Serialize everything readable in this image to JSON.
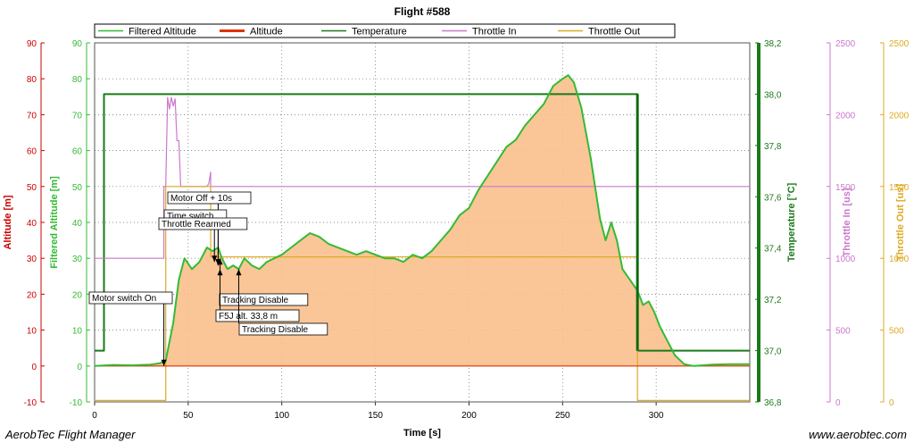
{
  "chart_data": {
    "type": "line",
    "title": "Flight #588",
    "xlabel": "Time [s]",
    "xlim": [
      0,
      350
    ],
    "x_ticks": [
      "0",
      "50",
      "100",
      "150",
      "200",
      "250",
      "300"
    ],
    "axes": [
      {
        "label": "Altitude [m]",
        "color": "#cc0000",
        "ylim": [
          -10,
          90
        ],
        "ticks": [
          "-10",
          "0",
          "10",
          "20",
          "30",
          "40",
          "50",
          "60",
          "70",
          "80",
          "90"
        ]
      },
      {
        "label": "Filtered Altitude [m]",
        "color": "#33bb33",
        "ylim": [
          -10,
          90
        ],
        "ticks": [
          "-10",
          "0",
          "10",
          "20",
          "30",
          "40",
          "50",
          "60",
          "70",
          "80",
          "90"
        ]
      },
      {
        "label": "Temperature [°C]",
        "color": "#1a7a1a",
        "ylim": [
          36.8,
          38.2
        ],
        "ticks": [
          "36,8",
          "37,0",
          "37,2",
          "37,4",
          "37,6",
          "37,8",
          "38,0",
          "38,2"
        ]
      },
      {
        "label": "Throttle In [us]",
        "color": "#cc77cc",
        "ylim": [
          0,
          2500
        ],
        "ticks": [
          "0",
          "500",
          "1000",
          "1500",
          "2000",
          "2500"
        ]
      },
      {
        "label": "Throttle Out [us]",
        "color": "#ddaa22",
        "ylim": [
          0,
          2500
        ],
        "ticks": [
          "0",
          "500",
          "1000",
          "1500",
          "2000",
          "2500"
        ]
      }
    ],
    "legend": [
      "Filtered Altitude",
      "Altitude",
      "Temperature",
      "Throttle In",
      "Throttle Out"
    ],
    "grid": true,
    "series": [
      {
        "name": "Filtered Altitude",
        "color": "#33bb33",
        "axis": 1,
        "x": [
          0,
          10,
          20,
          30,
          35,
          38,
          42,
          45,
          48,
          52,
          56,
          60,
          63,
          66,
          68,
          71,
          74,
          77,
          80,
          84,
          88,
          92,
          96,
          100,
          105,
          110,
          115,
          120,
          125,
          130,
          135,
          140,
          145,
          150,
          155,
          160,
          165,
          170,
          175,
          180,
          185,
          190,
          195,
          200,
          205,
          210,
          215,
          220,
          225,
          230,
          235,
          240,
          245,
          250,
          253,
          256,
          260,
          265,
          270,
          273,
          276,
          279,
          282,
          286,
          290,
          293,
          296,
          299,
          302,
          306,
          310,
          315,
          320,
          330,
          340,
          350
        ],
        "y": [
          0,
          0.3,
          0.2,
          0.4,
          0.8,
          1.5,
          12,
          24,
          30,
          27,
          29,
          33,
          32,
          33,
          30,
          27,
          28,
          27,
          30,
          28,
          27,
          29,
          30,
          31,
          33,
          35,
          37,
          36,
          34,
          33,
          32,
          31,
          32,
          31,
          30,
          30,
          29,
          31,
          30,
          32,
          35,
          38,
          42,
          44,
          49,
          53,
          57,
          61,
          63,
          67,
          70,
          73,
          78,
          80,
          81,
          79,
          72,
          58,
          41,
          35,
          40,
          35,
          27,
          24,
          21,
          17,
          18,
          15,
          11,
          7,
          3,
          0.5,
          0,
          0.4,
          0.5,
          0.5
        ]
      },
      {
        "name": "Altitude",
        "color": "#dd3300",
        "axis": 0,
        "x": [
          0,
          350
        ],
        "y": [
          0,
          0
        ]
      },
      {
        "name": "Temperature",
        "color": "#1a7a1a",
        "axis": 2,
        "x": [
          0,
          5,
          5,
          290,
          290,
          350
        ],
        "y": [
          37.0,
          37.0,
          38.0,
          38.0,
          37.0,
          37.0
        ]
      },
      {
        "name": "Throttle In",
        "color": "#cc77cc",
        "axis": 3,
        "x": [
          0,
          37,
          37,
          38,
          39,
          40,
          41,
          42,
          43,
          44,
          45,
          46,
          46,
          60,
          61,
          62,
          62,
          350
        ],
        "y": [
          1000,
          1000,
          1500,
          1500,
          2120,
          2040,
          2120,
          2060,
          2110,
          1820,
          1820,
          1500,
          1500,
          1500,
          1520,
          1600,
          1500,
          1500
        ]
      },
      {
        "name": "Throttle Out",
        "color": "#ddaa22",
        "axis": 4,
        "x": [
          0,
          38,
          38,
          62,
          62,
          290,
          290,
          350
        ],
        "y": [
          10,
          10,
          1500,
          1500,
          1010,
          1010,
          10,
          10
        ]
      }
    ],
    "annotations": [
      {
        "text": "Motor switch On",
        "x": 37,
        "y": 0
      },
      {
        "text": "Motor Off + 10s",
        "x": 66,
        "y": 28
      },
      {
        "text": "Time switch",
        "x": 66,
        "y": 28
      },
      {
        "text": "Throttle Rearmed",
        "x": 64,
        "y": 29
      },
      {
        "text": "Tracking Disable",
        "x": 67,
        "y": 27
      },
      {
        "text": "F5J alt. 33,8 m",
        "x": 67,
        "y": 30
      },
      {
        "text": "Tracking Disable",
        "x": 77,
        "y": 27
      }
    ]
  },
  "footer": {
    "left": "AerobTec Flight Manager",
    "right": "www.aerobtec.com"
  }
}
